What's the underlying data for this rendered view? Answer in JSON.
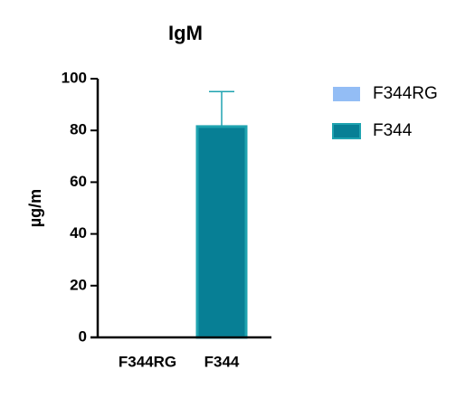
{
  "chart_data": {
    "type": "bar",
    "title": "IgM",
    "y_label": "µg/m",
    "categories": [
      "F344RG",
      "F344"
    ],
    "series": [
      {
        "name": "F344RG",
        "color": "#93bdf5",
        "values": [
          0,
          null
        ]
      },
      {
        "name": "F344",
        "color": "#077f95",
        "values": [
          null,
          81.5
        ],
        "errors": [
          null,
          13.5
        ]
      }
    ],
    "ylim": [
      0,
      100
    ],
    "yticks": [
      0,
      20,
      40,
      60,
      80,
      100
    ]
  }
}
